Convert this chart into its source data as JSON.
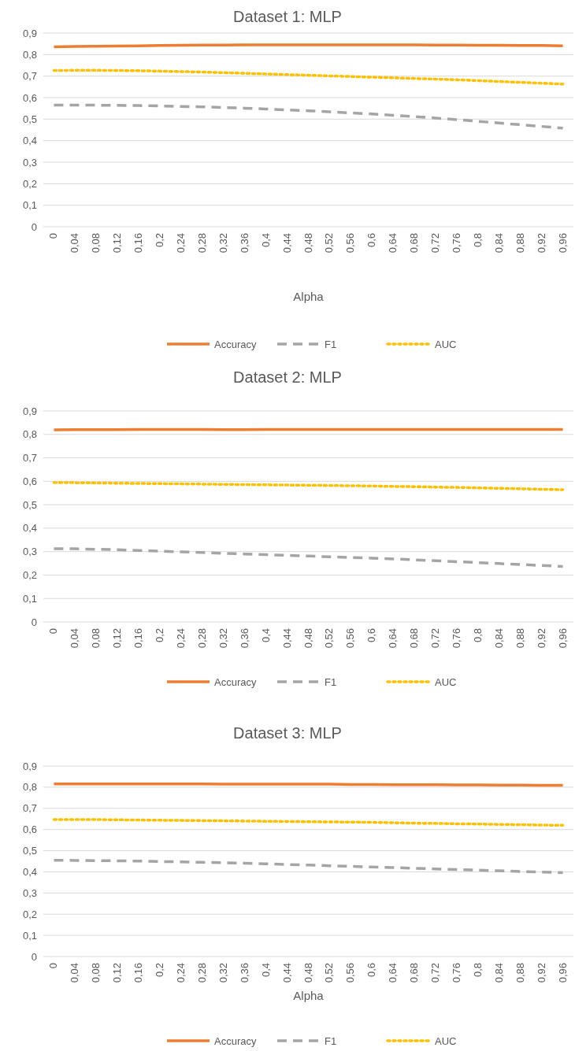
{
  "chart_data": [
    {
      "type": "line",
      "title": "Dataset 1: MLP",
      "xlabel": "Alpha",
      "categories": [
        "0",
        "0,04",
        "0,08",
        "0,12",
        "0,16",
        "0,2",
        "0,24",
        "0,28",
        "0,32",
        "0,36",
        "0,4",
        "0,44",
        "0,48",
        "0,52",
        "0,56",
        "0,6",
        "0,64",
        "0,68",
        "0,72",
        "0,76",
        "0,8",
        "0,84",
        "0,88",
        "0,92",
        "0,96"
      ],
      "ylim": [
        0,
        0.9
      ],
      "yticks": [
        {
          "value": 0,
          "label": "0"
        },
        {
          "value": 0.1,
          "label": "0,1"
        },
        {
          "value": 0.2,
          "label": "0,2"
        },
        {
          "value": 0.3,
          "label": "0,3"
        },
        {
          "value": 0.4,
          "label": "0,4"
        },
        {
          "value": 0.5,
          "label": "0,5"
        },
        {
          "value": 0.6,
          "label": "0,6"
        },
        {
          "value": 0.7,
          "label": "0,7"
        },
        {
          "value": 0.8,
          "label": "0,8"
        },
        {
          "value": 0.9,
          "label": "0,9"
        }
      ],
      "grid": "y",
      "legend": "bottom",
      "series": [
        {
          "name": "Accuracy",
          "color": "#ed7d31",
          "line_style": "solid",
          "values": [
            0.836,
            0.838,
            0.839,
            0.84,
            0.841,
            0.842,
            0.843,
            0.844,
            0.844,
            0.845,
            0.845,
            0.845,
            0.845,
            0.845,
            0.845,
            0.845,
            0.845,
            0.845,
            0.844,
            0.844,
            0.843,
            0.843,
            0.842,
            0.842,
            0.841
          ]
        },
        {
          "name": "F1",
          "color": "#a5a5a5",
          "line_style": "dashed",
          "values": [
            0.565,
            0.565,
            0.565,
            0.564,
            0.563,
            0.561,
            0.559,
            0.557,
            0.554,
            0.551,
            0.547,
            0.543,
            0.539,
            0.534,
            0.529,
            0.524,
            0.518,
            0.512,
            0.505,
            0.498,
            0.49,
            0.482,
            0.474,
            0.466,
            0.458
          ]
        },
        {
          "name": "AUC",
          "color": "#ffc000",
          "line_style": "dotted",
          "values": [
            0.726,
            0.727,
            0.727,
            0.726,
            0.725,
            0.723,
            0.721,
            0.719,
            0.716,
            0.713,
            0.71,
            0.707,
            0.704,
            0.701,
            0.698,
            0.695,
            0.692,
            0.689,
            0.686,
            0.683,
            0.679,
            0.675,
            0.671,
            0.667,
            0.663
          ]
        }
      ]
    },
    {
      "type": "line",
      "title": "Dataset 2: MLP",
      "categories": [
        "0",
        "0,04",
        "0,08",
        "0,12",
        "0,16",
        "0,2",
        "0,24",
        "0,28",
        "0,32",
        "0,36",
        "0,4",
        "0,44",
        "0,48",
        "0,52",
        "0,56",
        "0,6",
        "0,64",
        "0,68",
        "0,72",
        "0,76",
        "0,8",
        "0,84",
        "0,88",
        "0,92",
        "0,96"
      ],
      "ylim": [
        0,
        0.9
      ],
      "yticks": [
        {
          "value": 0,
          "label": "0"
        },
        {
          "value": 0.1,
          "label": "0,1"
        },
        {
          "value": 0.2,
          "label": "0,2"
        },
        {
          "value": 0.3,
          "label": "0,3"
        },
        {
          "value": 0.4,
          "label": "0,4"
        },
        {
          "value": 0.5,
          "label": "0,5"
        },
        {
          "value": 0.6,
          "label": "0,6"
        },
        {
          "value": 0.7,
          "label": "0,7"
        },
        {
          "value": 0.8,
          "label": "0,8"
        },
        {
          "value": 0.9,
          "label": "0,9"
        }
      ],
      "grid": "y",
      "legend": "bottom",
      "series": [
        {
          "name": "Accuracy",
          "color": "#ed7d31",
          "line_style": "solid",
          "values": [
            0.819,
            0.82,
            0.82,
            0.82,
            0.821,
            0.821,
            0.821,
            0.821,
            0.82,
            0.82,
            0.821,
            0.821,
            0.821,
            0.821,
            0.821,
            0.821,
            0.821,
            0.821,
            0.821,
            0.821,
            0.821,
            0.821,
            0.821,
            0.821,
            0.821
          ]
        },
        {
          "name": "F1",
          "color": "#a5a5a5",
          "line_style": "dashed",
          "values": [
            0.312,
            0.312,
            0.31,
            0.308,
            0.305,
            0.302,
            0.299,
            0.296,
            0.293,
            0.29,
            0.287,
            0.284,
            0.281,
            0.278,
            0.275,
            0.272,
            0.269,
            0.265,
            0.261,
            0.257,
            0.253,
            0.249,
            0.245,
            0.241,
            0.237
          ]
        },
        {
          "name": "AUC",
          "color": "#ffc000",
          "line_style": "dotted",
          "values": [
            0.594,
            0.594,
            0.593,
            0.592,
            0.591,
            0.59,
            0.589,
            0.588,
            0.587,
            0.586,
            0.585,
            0.584,
            0.583,
            0.582,
            0.581,
            0.58,
            0.578,
            0.577,
            0.575,
            0.574,
            0.572,
            0.57,
            0.568,
            0.566,
            0.564
          ]
        }
      ]
    },
    {
      "type": "line",
      "title": "Dataset 3: MLP",
      "xlabel": "Alpha",
      "categories": [
        "0",
        "0,04",
        "0,08",
        "0,12",
        "0,16",
        "0,2",
        "0,24",
        "0,28",
        "0,32",
        "0,36",
        "0,4",
        "0,44",
        "0,48",
        "0,52",
        "0,56",
        "0,6",
        "0,64",
        "0,68",
        "0,72",
        "0,76",
        "0,8",
        "0,84",
        "0,88",
        "0,92",
        "0,96"
      ],
      "ylim": [
        0,
        0.9
      ],
      "yticks": [
        {
          "value": 0,
          "label": "0"
        },
        {
          "value": 0.1,
          "label": "0,1"
        },
        {
          "value": 0.2,
          "label": "0,2"
        },
        {
          "value": 0.3,
          "label": "0,3"
        },
        {
          "value": 0.4,
          "label": "0,4"
        },
        {
          "value": 0.5,
          "label": "0,5"
        },
        {
          "value": 0.6,
          "label": "0,6"
        },
        {
          "value": 0.7,
          "label": "0,7"
        },
        {
          "value": 0.8,
          "label": "0,8"
        },
        {
          "value": 0.9,
          "label": "0,9"
        }
      ],
      "grid": "y",
      "legend": "bottom",
      "series": [
        {
          "name": "Accuracy",
          "color": "#ed7d31",
          "line_style": "solid",
          "values": [
            0.815,
            0.815,
            0.815,
            0.815,
            0.815,
            0.815,
            0.815,
            0.815,
            0.814,
            0.814,
            0.814,
            0.814,
            0.814,
            0.814,
            0.813,
            0.813,
            0.812,
            0.812,
            0.812,
            0.811,
            0.811,
            0.81,
            0.81,
            0.809,
            0.809
          ]
        },
        {
          "name": "F1",
          "color": "#a5a5a5",
          "line_style": "dashed",
          "values": [
            0.455,
            0.454,
            0.453,
            0.452,
            0.451,
            0.449,
            0.447,
            0.445,
            0.443,
            0.441,
            0.438,
            0.435,
            0.432,
            0.429,
            0.426,
            0.423,
            0.42,
            0.417,
            0.414,
            0.411,
            0.408,
            0.405,
            0.402,
            0.399,
            0.396
          ]
        },
        {
          "name": "AUC",
          "color": "#ffc000",
          "line_style": "dotted",
          "values": [
            0.647,
            0.647,
            0.647,
            0.646,
            0.645,
            0.644,
            0.643,
            0.642,
            0.641,
            0.64,
            0.639,
            0.638,
            0.637,
            0.636,
            0.635,
            0.634,
            0.632,
            0.63,
            0.629,
            0.627,
            0.626,
            0.624,
            0.623,
            0.621,
            0.62
          ]
        }
      ]
    }
  ]
}
